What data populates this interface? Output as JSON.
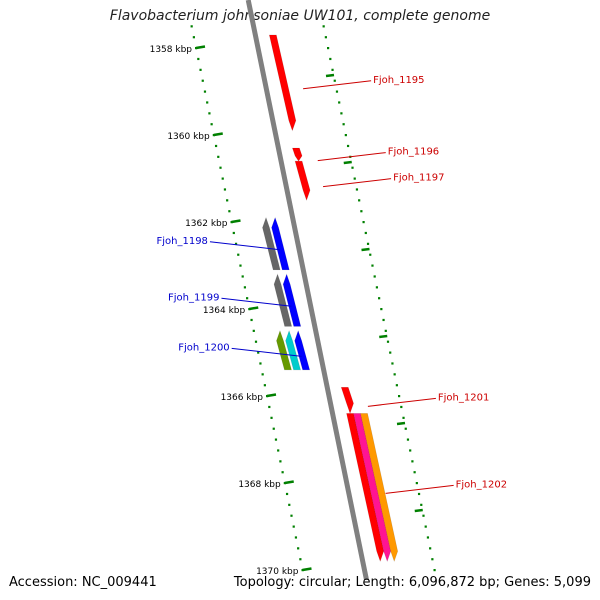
{
  "title": "Flavobacterium johnsoniae UW101, complete genome",
  "footer": {
    "accession": "Accession: NC_009441",
    "topology": "Topology: circular; Length: 6,096,872 bp; Genes: 5,099"
  },
  "ticks": [
    {
      "label": "1358 kbp",
      "pos": 1358
    },
    {
      "label": "1360 kbp",
      "pos": 1360
    },
    {
      "label": "1362 kbp",
      "pos": 1362
    },
    {
      "label": "1364 kbp",
      "pos": 1364
    },
    {
      "label": "1366 kbp",
      "pos": 1366
    },
    {
      "label": "1368 kbp",
      "pos": 1368
    },
    {
      "label": "1370 kbp",
      "pos": 1370
    }
  ],
  "genes": [
    {
      "label": "Fjoh_1195",
      "start": 1357.7,
      "end": 1359.9,
      "strand": "plus",
      "lane": "inner",
      "tracks": [
        "#ff0000"
      ],
      "label_color": "#cc0000"
    },
    {
      "label": "Fjoh_1196",
      "start": 1360.3,
      "end": 1360.6,
      "strand": "plus",
      "lane": "inner",
      "tracks": [
        "#ff0000"
      ],
      "label_color": "#cc0000"
    },
    {
      "label": "Fjoh_1197",
      "start": 1360.6,
      "end": 1361.5,
      "strand": "plus",
      "lane": "inner",
      "tracks": [
        "#ff0000"
      ],
      "label_color": "#cc0000"
    },
    {
      "label": "Fjoh_1198",
      "start": 1361.9,
      "end": 1363.1,
      "strand": "minus",
      "lane": "inner",
      "tracks": [
        "#0000ff",
        "#666666"
      ],
      "label_color": "#0000cc"
    },
    {
      "label": "Fjoh_1199",
      "start": 1363.2,
      "end": 1364.4,
      "strand": "minus",
      "lane": "inner",
      "tracks": [
        "#0000ff",
        "#666666"
      ],
      "label_color": "#0000cc"
    },
    {
      "label": "Fjoh_1200",
      "start": 1364.5,
      "end": 1365.4,
      "strand": "minus",
      "lane": "inner",
      "tracks": [
        "#0000ff",
        "#00cccc",
        "#669900"
      ],
      "label_color": "#0000cc"
    },
    {
      "label": "Fjoh_1201",
      "start": 1365.8,
      "end": 1366.4,
      "strand": "plus",
      "lane": "inner",
      "tracks": [
        "#ff0000"
      ],
      "label_color": "#cc0000"
    },
    {
      "label": "Fjoh_1202",
      "start": 1366.4,
      "end": 1369.8,
      "strand": "plus",
      "lane": "inner",
      "tracks": [
        "#ff0000",
        "#ff1493",
        "#ff9900"
      ],
      "label_color": "#cc0000"
    }
  ],
  "colors": {
    "backbone": "#808080",
    "tick": "#008000",
    "plus_label": "#cc0000",
    "minus_label": "#0000cc"
  }
}
